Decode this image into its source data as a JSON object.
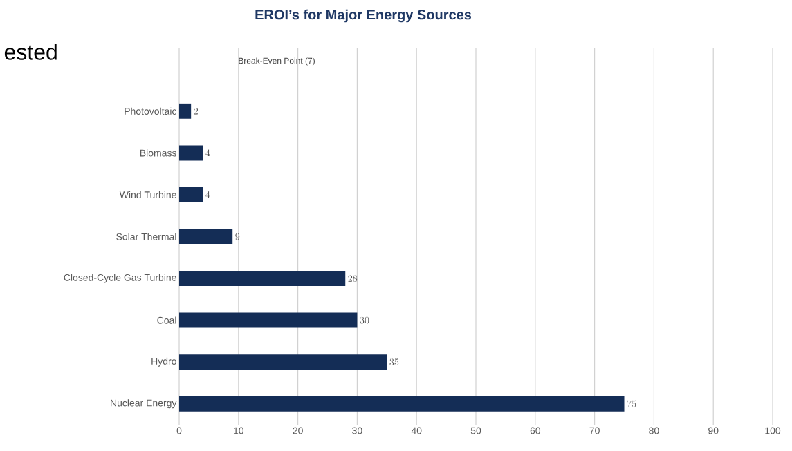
{
  "chart_data": {
    "type": "bar",
    "orientation": "horizontal",
    "title": "EROI’s for Major Energy Sources",
    "categories": [
      "Photovoltaic",
      "Biomass",
      "Wind Turbine",
      "Solar Thermal",
      "Closed-Cycle Gas Turbine",
      "Coal",
      "Hydro",
      "Nuclear Energy"
    ],
    "values": [
      2,
      4,
      4,
      9,
      28,
      30,
      35,
      75
    ],
    "color": "#142d56",
    "xlim": [
      0,
      100
    ],
    "xticks": [
      0,
      10,
      20,
      30,
      40,
      50,
      60,
      70,
      80,
      90,
      100
    ],
    "grid": "x",
    "data_labels": true,
    "annotations": [
      "ested",
      "Break-Even Point (7)"
    ]
  }
}
